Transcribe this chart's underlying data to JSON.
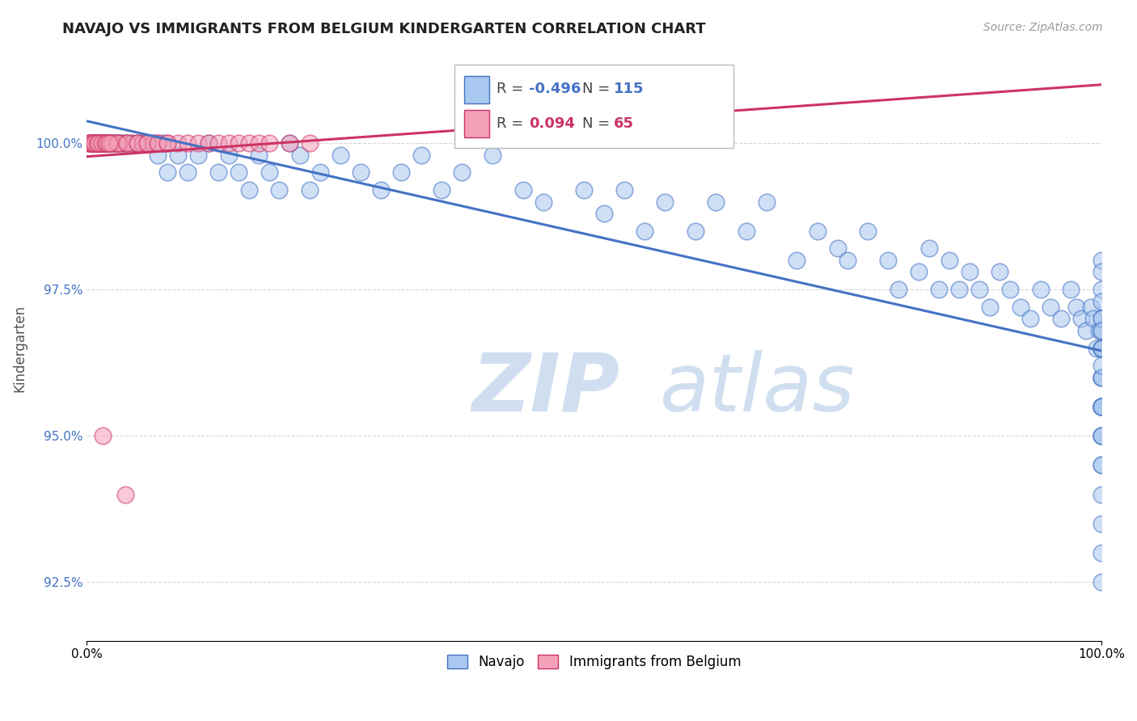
{
  "title": "NAVAJO VS IMMIGRANTS FROM BELGIUM KINDERGARTEN CORRELATION CHART",
  "source": "Source: ZipAtlas.com",
  "ylabel": "Kindergarten",
  "legend_navajo": "Navajo",
  "legend_belgium": "Immigrants from Belgium",
  "navajo_R": -0.496,
  "navajo_N": 115,
  "belgium_R": 0.094,
  "belgium_N": 65,
  "navajo_color": "#A8C8F0",
  "navajo_edge_color": "#4472C4",
  "belgium_color": "#F4A0B8",
  "belgium_edge_color": "#CC3366",
  "navajo_line_color": "#4472C4",
  "belgium_line_color": "#CC3366",
  "watermark": "ZIPatlas",
  "watermark_color": "#D0DFF0",
  "xmin": 0.0,
  "xmax": 100.0,
  "ymin": 91.5,
  "ymax": 101.5,
  "yticks": [
    92.5,
    95.0,
    97.5,
    100.0
  ],
  "ytick_labels": [
    "92.5%",
    "95.0%",
    "97.5%",
    "100.0%"
  ],
  "grid_color": "#CCCCCC",
  "background_color": "#FFFFFF",
  "navajo_x": [
    0.5,
    0.8,
    1.0,
    1.2,
    1.5,
    1.8,
    2.0,
    2.2,
    2.5,
    2.8,
    3.0,
    3.2,
    3.5,
    3.8,
    4.0,
    4.5,
    5.0,
    5.5,
    6.0,
    6.5,
    7.0,
    7.5,
    8.0,
    9.0,
    10.0,
    11.0,
    12.0,
    13.0,
    14.0,
    15.0,
    16.0,
    17.0,
    18.0,
    19.0,
    20.0,
    21.0,
    22.0,
    23.0,
    25.0,
    27.0,
    29.0,
    31.0,
    33.0,
    35.0,
    37.0,
    40.0,
    43.0,
    45.0,
    49.0,
    51.0,
    53.0,
    55.0,
    57.0,
    60.0,
    62.0,
    65.0,
    67.0,
    70.0,
    72.0,
    74.0,
    75.0,
    77.0,
    79.0,
    80.0,
    82.0,
    83.0,
    84.0,
    85.0,
    86.0,
    87.0,
    88.0,
    89.0,
    90.0,
    91.0,
    92.0,
    93.0,
    94.0,
    95.0,
    96.0,
    97.0,
    97.5,
    98.0,
    98.5,
    99.0,
    99.2,
    99.5,
    99.8,
    100.0,
    100.0,
    100.0,
    100.0,
    100.0,
    100.0,
    100.0,
    100.0,
    100.0,
    100.0,
    100.0,
    100.0,
    100.0,
    100.0,
    100.0,
    100.0,
    100.0,
    100.0,
    100.0,
    100.0,
    100.0,
    100.0,
    100.0,
    100.0,
    100.0,
    100.0,
    100.0,
    100.0,
    100.0,
    100.0
  ],
  "navajo_y": [
    100.0,
    100.0,
    100.0,
    100.0,
    100.0,
    100.0,
    100.0,
    100.0,
    100.0,
    100.0,
    100.0,
    100.0,
    100.0,
    100.0,
    100.0,
    100.0,
    100.0,
    100.0,
    100.0,
    100.0,
    99.8,
    100.0,
    99.5,
    99.8,
    99.5,
    99.8,
    100.0,
    99.5,
    99.8,
    99.5,
    99.2,
    99.8,
    99.5,
    99.2,
    100.0,
    99.8,
    99.2,
    99.5,
    99.8,
    99.5,
    99.2,
    99.5,
    99.8,
    99.2,
    99.5,
    99.8,
    99.2,
    99.0,
    99.2,
    98.8,
    99.2,
    98.5,
    99.0,
    98.5,
    99.0,
    98.5,
    99.0,
    98.0,
    98.5,
    98.2,
    98.0,
    98.5,
    98.0,
    97.5,
    97.8,
    98.2,
    97.5,
    98.0,
    97.5,
    97.8,
    97.5,
    97.2,
    97.8,
    97.5,
    97.2,
    97.0,
    97.5,
    97.2,
    97.0,
    97.5,
    97.2,
    97.0,
    96.8,
    97.2,
    97.0,
    96.5,
    96.8,
    96.5,
    97.0,
    96.5,
    96.8,
    96.5,
    95.5,
    96.0,
    95.5,
    96.0,
    95.5,
    96.0,
    95.5,
    95.0,
    95.5,
    95.0,
    94.5,
    95.0,
    94.5,
    93.5,
    94.0,
    93.0,
    92.5,
    96.5,
    98.0,
    97.5,
    97.0,
    97.8,
    97.3,
    96.8,
    96.2
  ],
  "belgium_x": [
    0.2,
    0.4,
    0.5,
    0.6,
    0.7,
    0.8,
    0.9,
    1.0,
    1.1,
    1.2,
    1.3,
    1.4,
    1.5,
    1.6,
    1.7,
    1.8,
    1.9,
    2.0,
    2.1,
    2.2,
    2.5,
    2.8,
    3.0,
    3.5,
    4.0,
    4.5,
    5.0,
    5.5,
    6.0,
    6.5,
    7.0,
    8.0,
    9.0,
    10.0,
    11.0,
    12.0,
    13.0,
    14.0,
    15.0,
    16.0,
    17.0,
    18.0,
    20.0,
    22.0,
    3.2,
    0.3,
    0.4,
    0.5,
    0.6,
    0.8,
    1.0,
    1.2,
    1.5,
    1.8,
    2.0,
    2.5,
    3.0,
    4.0,
    5.0,
    6.0,
    7.0,
    8.0,
    2.2,
    1.6,
    3.8
  ],
  "belgium_y": [
    100.0,
    100.0,
    100.0,
    100.0,
    100.0,
    100.0,
    100.0,
    100.0,
    100.0,
    100.0,
    100.0,
    100.0,
    100.0,
    100.0,
    100.0,
    100.0,
    100.0,
    100.0,
    100.0,
    100.0,
    100.0,
    100.0,
    100.0,
    100.0,
    100.0,
    100.0,
    100.0,
    100.0,
    100.0,
    100.0,
    100.0,
    100.0,
    100.0,
    100.0,
    100.0,
    100.0,
    100.0,
    100.0,
    100.0,
    100.0,
    100.0,
    100.0,
    100.0,
    100.0,
    100.0,
    100.0,
    100.0,
    100.0,
    100.0,
    100.0,
    100.0,
    100.0,
    100.0,
    100.0,
    100.0,
    100.0,
    100.0,
    100.0,
    100.0,
    100.0,
    100.0,
    100.0,
    100.0,
    95.0,
    94.0
  ]
}
